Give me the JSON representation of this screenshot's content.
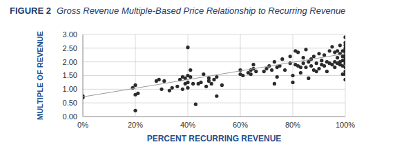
{
  "chart_data": {
    "type": "scatter",
    "figure_label": "FIGURE 2",
    "title": "Gross Revenue Multiple-Based Price Relationship to Recurring Revenue",
    "xlabel": "PERCENT RECURRING REVENUE",
    "ylabel": "MULTIPLE OF REVENUE",
    "xlim": [
      0,
      100
    ],
    "xticks": [
      {
        "value": 0,
        "label": "0%"
      },
      {
        "value": 20,
        "label": "20%"
      },
      {
        "value": 40,
        "label": "40%"
      },
      {
        "value": 60,
        "label": "60%"
      },
      {
        "value": 80,
        "label": "80%"
      },
      {
        "value": 100,
        "label": "100%"
      }
    ],
    "ylim": [
      0,
      3
    ],
    "yticks": [
      {
        "value": 0,
        "label": "0.00"
      },
      {
        "value": 0.5,
        "label": "0.50"
      },
      {
        "value": 1,
        "label": "1.00"
      },
      {
        "value": 1.5,
        "label": "1.50"
      },
      {
        "value": 2,
        "label": "2.00"
      },
      {
        "value": 2.5,
        "label": "2.50"
      },
      {
        "value": 3,
        "label": "3.00"
      }
    ],
    "grid": true,
    "series": [
      {
        "type": "scatter",
        "color": "#2b2b2b",
        "marker": "circle",
        "x": [
          0,
          0,
          19,
          20,
          20,
          20,
          21,
          28,
          29,
          30,
          31,
          33,
          34,
          36,
          37,
          38,
          38,
          39,
          39,
          40,
          40,
          40,
          40,
          41,
          41,
          42,
          43,
          44,
          45,
          46,
          47,
          48,
          48,
          49,
          50,
          51,
          51,
          53,
          60,
          60,
          61,
          63,
          64,
          64,
          65,
          65,
          66,
          69,
          70,
          71,
          72,
          73,
          73,
          74,
          74,
          75,
          76,
          77,
          79,
          79,
          80,
          80,
          81,
          81,
          82,
          82,
          83,
          83,
          84,
          84,
          85,
          85,
          86,
          86,
          87,
          87,
          88,
          88,
          89,
          89,
          90,
          90,
          91,
          91,
          92,
          92,
          93,
          93,
          94,
          94,
          95,
          95,
          96,
          96,
          96,
          97,
          97,
          97,
          98,
          98,
          98,
          98,
          99,
          99,
          99,
          99,
          99,
          100,
          100,
          100,
          100,
          100,
          100,
          100,
          100,
          100,
          100,
          100,
          100,
          100,
          100
        ],
        "values": [
          0.75,
          0.7,
          1.05,
          1.15,
          0.8,
          0.22,
          0.85,
          1.3,
          1.35,
          1.0,
          1.3,
          0.95,
          1.05,
          1.1,
          1.35,
          1.45,
          1.0,
          1.4,
          1.2,
          1.5,
          1.25,
          1.05,
          2.53,
          1.7,
          1.45,
          1.2,
          0.45,
          1.2,
          1.25,
          1.55,
          1.1,
          1.3,
          1.4,
          1.2,
          1.35,
          1.45,
          0.75,
          1.15,
          1.7,
          1.55,
          1.5,
          1.6,
          1.7,
          1.55,
          1.9,
          1.75,
          1.65,
          1.65,
          1.75,
          1.85,
          1.7,
          2.0,
          1.2,
          1.45,
          1.8,
          1.85,
          2.1,
          1.7,
          1.95,
          2.2,
          1.5,
          1.25,
          2.4,
          1.9,
          1.85,
          2.35,
          1.8,
          1.6,
          1.95,
          2.15,
          2.45,
          1.8,
          2.0,
          1.4,
          2.1,
          1.85,
          2.2,
          1.7,
          1.65,
          1.95,
          2.3,
          1.75,
          2.05,
          1.9,
          2.25,
          1.85,
          2.0,
          1.65,
          1.95,
          2.4,
          1.9,
          2.55,
          2.35,
          2.0,
          1.8,
          2.4,
          2.15,
          1.95,
          2.3,
          2.0,
          1.9,
          2.6,
          2.4,
          2.2,
          2.05,
          1.85,
          1.55,
          2.9,
          2.7,
          2.6,
          2.5,
          2.45,
          2.35,
          2.25,
          2.15,
          2.05,
          1.95,
          1.8,
          1.65,
          1.55,
          1.35
        ]
      },
      {
        "type": "line",
        "color": "#9a9a9a",
        "line_style": "solid",
        "x": [
          0,
          100
        ],
        "values": [
          0.72,
          2.3
        ]
      }
    ]
  }
}
